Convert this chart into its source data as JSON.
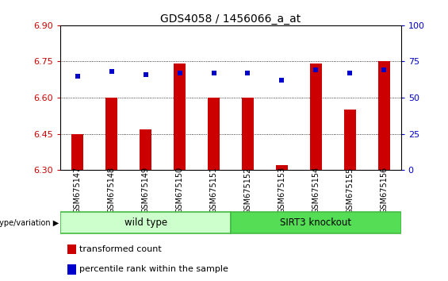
{
  "title": "GDS4058 / 1456066_a_at",
  "samples": [
    "GSM675147",
    "GSM675148",
    "GSM675149",
    "GSM675150",
    "GSM675151",
    "GSM675152",
    "GSM675153",
    "GSM675154",
    "GSM675155",
    "GSM675156"
  ],
  "red_values": [
    6.45,
    6.6,
    6.47,
    6.74,
    6.6,
    6.6,
    6.32,
    6.74,
    6.55,
    6.75
  ],
  "blue_pct": [
    65,
    68,
    66,
    67,
    67,
    67,
    62,
    69,
    67,
    69
  ],
  "ylim": [
    6.3,
    6.9
  ],
  "ylim_right": [
    0,
    100
  ],
  "yticks_left": [
    6.3,
    6.45,
    6.6,
    6.75,
    6.9
  ],
  "yticks_right": [
    0,
    25,
    50,
    75,
    100
  ],
  "groups": [
    {
      "label": "wild type",
      "start": 0,
      "end": 5,
      "color": "#ccffcc",
      "edge_color": "#44bb44"
    },
    {
      "label": "SIRT3 knockout",
      "start": 5,
      "end": 10,
      "color": "#55dd55",
      "edge_color": "#44bb44"
    }
  ],
  "group_row_label": "genotype/variation",
  "red_color": "#cc0000",
  "blue_color": "#0000cc",
  "tick_color_left": "#cc0000",
  "tick_color_right": "#0000cc",
  "grid_color": "#000000",
  "bar_width": 0.35,
  "blue_marker_size": 5,
  "legend_items": [
    "transformed count",
    "percentile rank within the sample"
  ],
  "background_plot": "#ffffff",
  "background_tick": "#cccccc",
  "tick_label_fontsize": 8,
  "sample_fontsize": 7,
  "title_fontsize": 10
}
